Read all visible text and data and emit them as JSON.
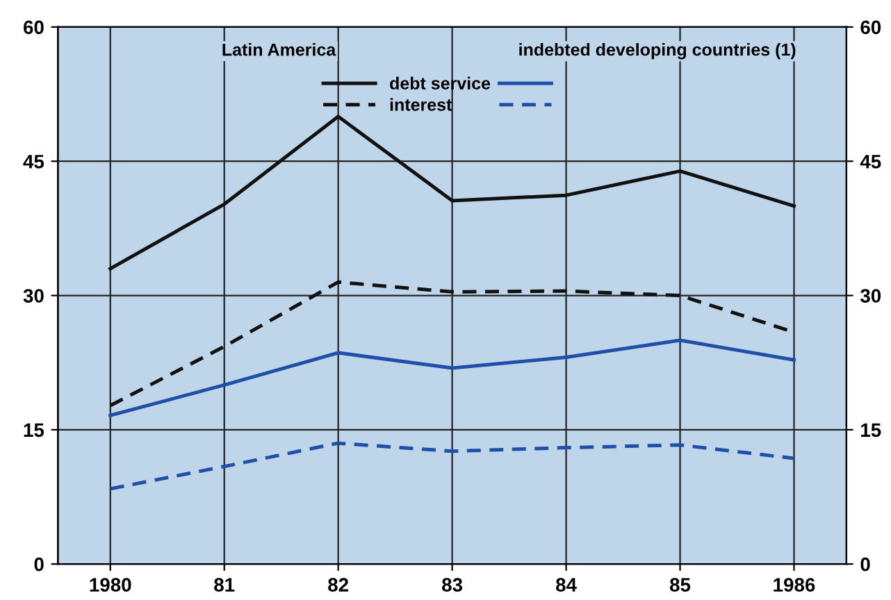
{
  "chart_data": {
    "type": "line",
    "categories": [
      "1980",
      "81",
      "82",
      "83",
      "84",
      "85",
      "1986"
    ],
    "series": [
      {
        "name": "debt service",
        "color": "#111111",
        "line_style": "solid",
        "values": [
          33,
          40.2,
          50,
          40.6,
          41.2,
          43.9,
          40
        ]
      },
      {
        "name": "interest",
        "color": "#111111",
        "line_style": "dashed",
        "values": [
          17.7,
          24.3,
          31.5,
          30.4,
          30.5,
          30,
          25.9
        ]
      },
      {
        "color": "#1f4fa8",
        "line_style": "solid",
        "values": [
          16.6,
          20,
          23.6,
          21.9,
          23.1,
          25,
          22.8
        ]
      },
      {
        "color": "#1f4fa8",
        "line_style": "dashed",
        "values": [
          8.4,
          10.9,
          13.5,
          12.6,
          13,
          13.3,
          11.8
        ]
      }
    ],
    "annotations": [
      "Latin America",
      "indebted developing countries (1)"
    ],
    "ylim": [
      0,
      60
    ],
    "yticks": [
      0,
      15,
      30,
      45,
      60
    ],
    "y2lim": [
      0,
      60
    ],
    "y2ticks": [
      0,
      15,
      30,
      45,
      60
    ],
    "grid": true,
    "legend": "top",
    "marker": "none"
  }
}
